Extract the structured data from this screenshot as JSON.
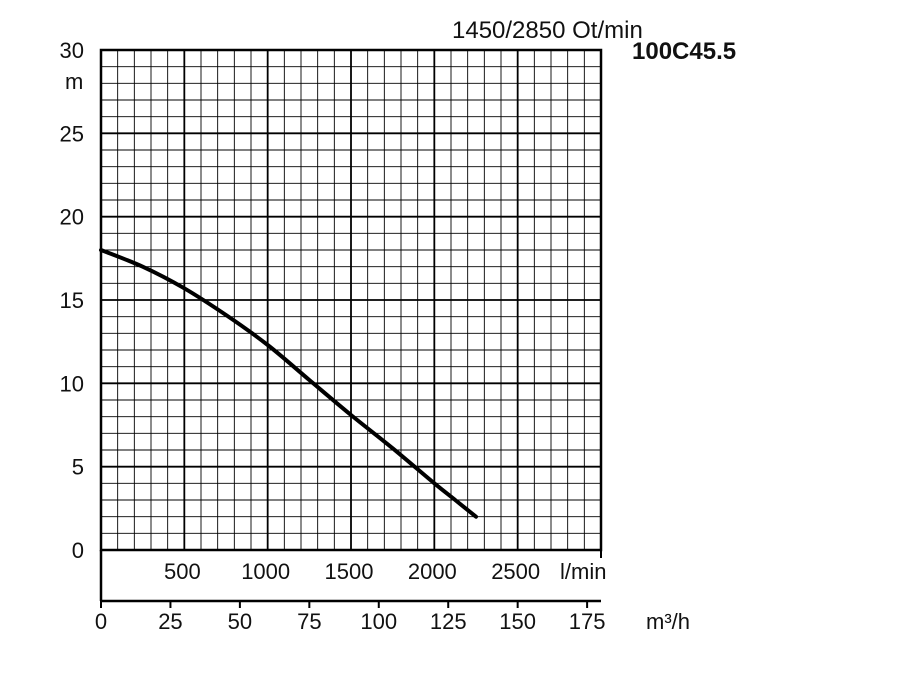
{
  "header": {
    "speed_label": "1450/2850 Ot/min",
    "model_label": "100C45.5"
  },
  "chart_data": {
    "type": "line",
    "title": "100C45.5",
    "subtitle": "1450/2850 Ot/min",
    "ylabel": "m",
    "ylim": [
      0,
      30
    ],
    "y_ticks": [
      "0",
      "5",
      "10",
      "15",
      "20",
      "25",
      "30"
    ],
    "grid": true,
    "x_axes": [
      {
        "unit": "l/min",
        "xlim": [
          0,
          3000
        ],
        "ticks": [
          "500",
          "1000",
          "1500",
          "2000",
          "2500"
        ]
      },
      {
        "unit": "m³/h",
        "xlim": [
          0,
          180
        ],
        "ticks": [
          "0",
          "25",
          "50",
          "75",
          "100",
          "125",
          "150",
          "175"
        ]
      }
    ],
    "series": [
      {
        "x_unit": "l/min",
        "x": [
          0,
          250,
          500,
          750,
          1000,
          1250,
          1500,
          1750,
          2000,
          2125,
          2250
        ],
        "y": [
          18,
          17,
          15.7,
          14.1,
          12.3,
          10.2,
          8.1,
          6.1,
          4.0,
          3.0,
          2.0
        ]
      }
    ]
  }
}
